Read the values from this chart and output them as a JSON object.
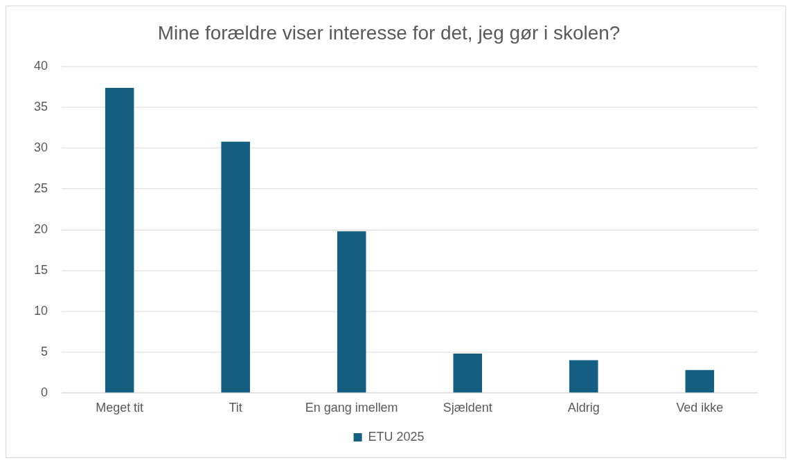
{
  "chart_data": {
    "type": "bar",
    "title": "Mine forældre viser interesse for det, jeg gør i skolen?",
    "categories": [
      "Meget tit",
      "Tit",
      "En gang imellem",
      "Sjældent",
      "Aldrig",
      "Ved ikke"
    ],
    "series": [
      {
        "name": "ETU 2025",
        "color": "#156082",
        "values": [
          37.4,
          30.8,
          19.8,
          4.8,
          4.0,
          2.8
        ]
      }
    ],
    "ylim": [
      0,
      40
    ],
    "yticks": [
      0,
      5,
      10,
      15,
      20,
      25,
      30,
      35,
      40
    ],
    "grid": "y",
    "legend": "bottom"
  }
}
